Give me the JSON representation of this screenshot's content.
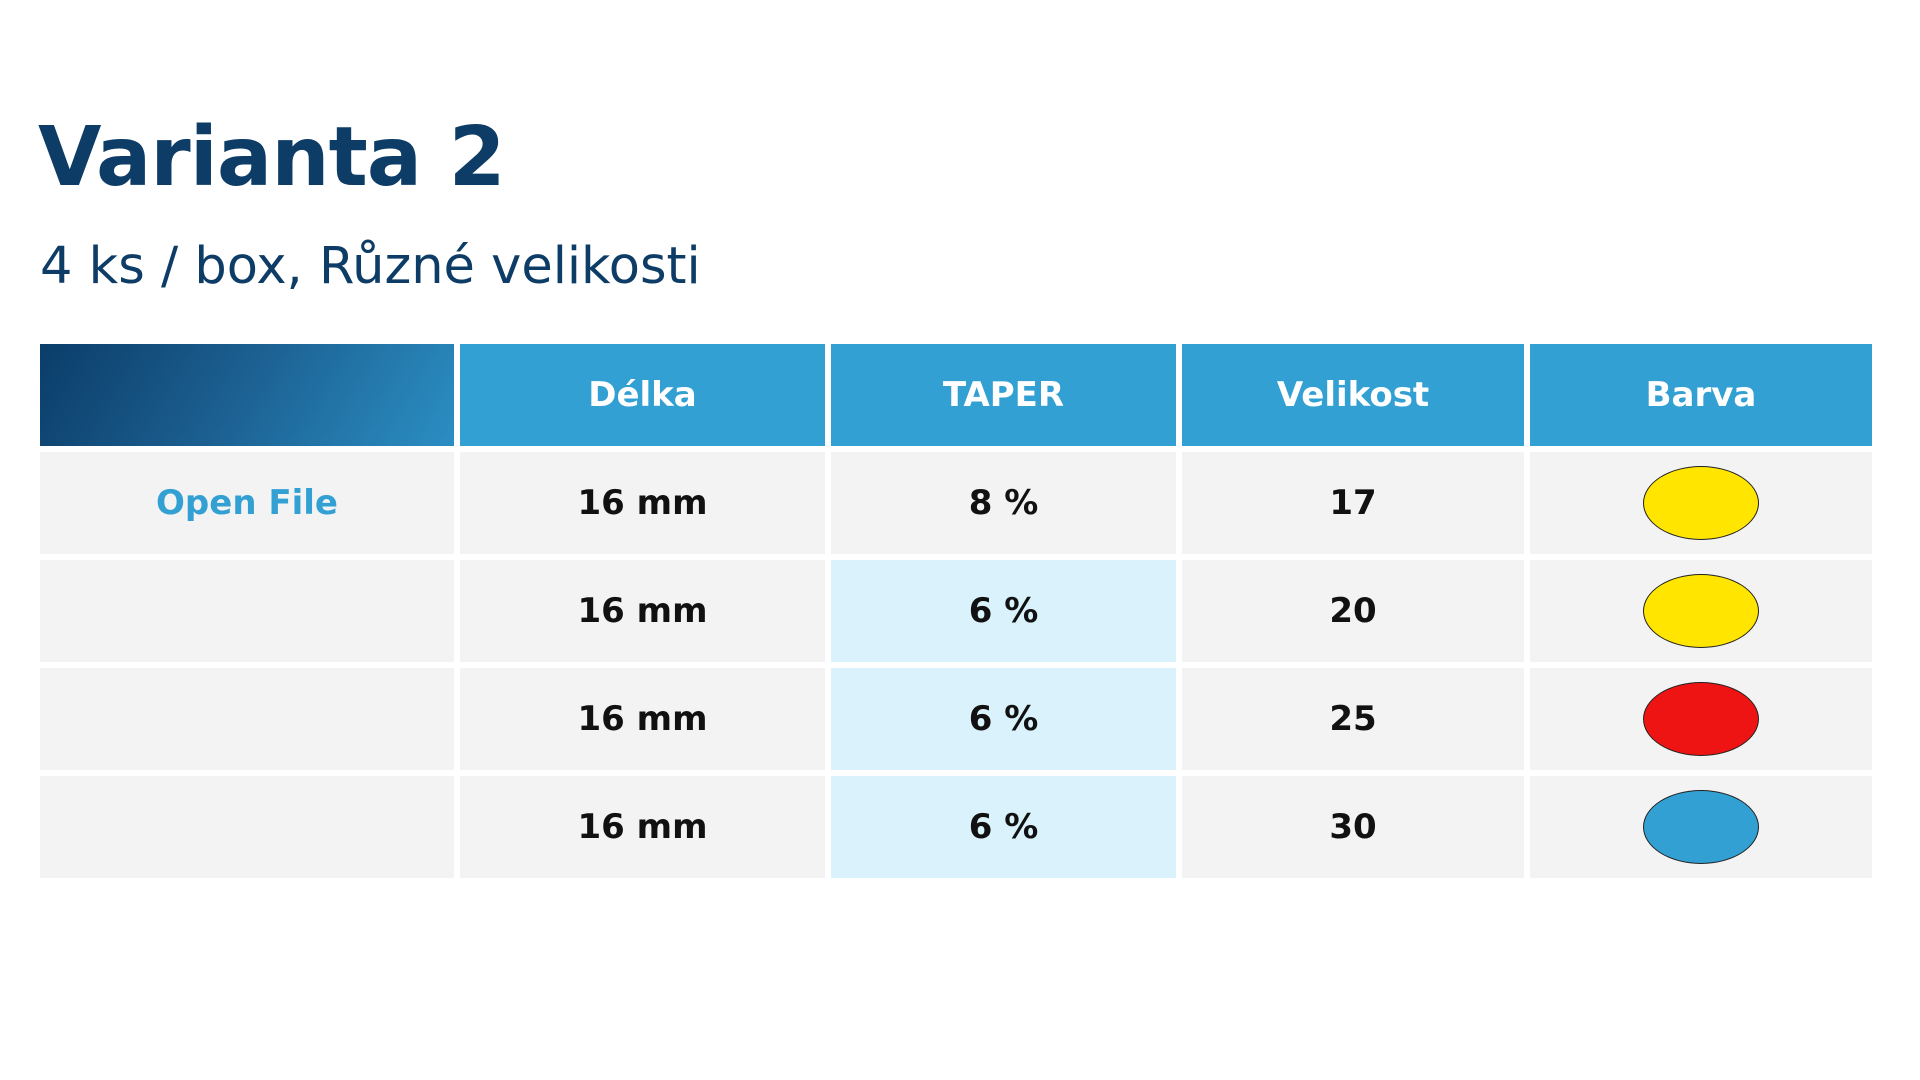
{
  "header": {
    "title": "Varianta 2",
    "subtitle": "4 ks / box, Různé velikosti"
  },
  "table": {
    "columns": [
      "Délka",
      "TAPER",
      "Velikost",
      "Barva"
    ],
    "first_row_link": "Open File",
    "rows": [
      {
        "delka": "16 mm",
        "taper": "8 %",
        "velikost": "17",
        "barva": "yellow",
        "color": "#ffe500"
      },
      {
        "delka": "16 mm",
        "taper": "6 %",
        "velikost": "20",
        "barva": "yellow",
        "color": "#ffe500"
      },
      {
        "delka": "16 mm",
        "taper": "6 %",
        "velikost": "25",
        "barva": "red",
        "color": "#ee1414"
      },
      {
        "delka": "16 mm",
        "taper": "6 %",
        "velikost": "30",
        "barva": "blue",
        "color": "#33a0d3"
      }
    ]
  },
  "colors": {
    "title": "#0d3c66",
    "header_bg": "#33a0d3",
    "cell_bg": "#f3f3f3",
    "highlight_bg": "#d9f2fc",
    "link": "#33a0d3"
  }
}
